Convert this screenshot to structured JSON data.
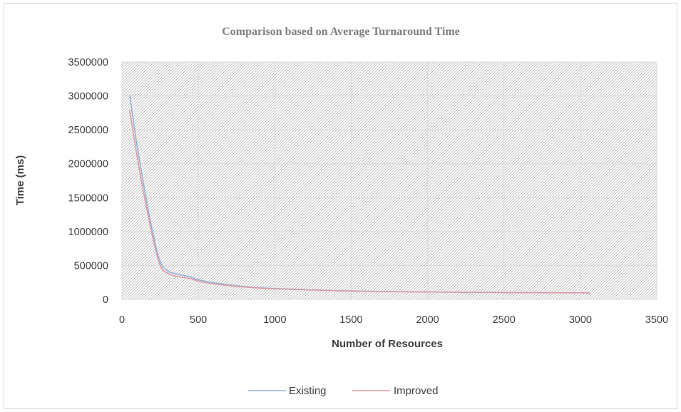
{
  "chart_data": {
    "type": "line",
    "title": "Comparison based on Average Turnaround Time",
    "xlabel": "Number of Resources",
    "ylabel": "Time (ms)",
    "xlim": [
      0,
      3500
    ],
    "ylim": [
      0,
      3500000
    ],
    "x_ticks": [
      "0",
      "500",
      "1000",
      "1500",
      "2000",
      "2500",
      "3000",
      "3500"
    ],
    "y_ticks": [
      "0",
      "500000",
      "1000000",
      "1500000",
      "2000000",
      "2500000",
      "3000000",
      "3500000"
    ],
    "grid": true,
    "legend_position": "bottom",
    "series": [
      {
        "name": "Existing",
        "color": "#8fb4da",
        "x": [
          50,
          100,
          150,
          200,
          250,
          300,
          350,
          400,
          450,
          500,
          600,
          700,
          800,
          1000,
          1500,
          2000,
          2500,
          3000,
          3050
        ],
        "y": [
          3020000,
          2250000,
          1600000,
          1000000,
          560000,
          420000,
          380000,
          355000,
          330000,
          290000,
          245000,
          215000,
          190000,
          160000,
          125000,
          110000,
          103000,
          97000,
          95000
        ]
      },
      {
        "name": "Improved",
        "color": "#e39aa2",
        "x": [
          50,
          100,
          150,
          200,
          250,
          300,
          350,
          400,
          450,
          500,
          600,
          700,
          800,
          1000,
          1500,
          2000,
          2500,
          3000,
          3050
        ],
        "y": [
          2790000,
          2100000,
          1480000,
          930000,
          500000,
          385000,
          345000,
          325000,
          305000,
          270000,
          230000,
          205000,
          182000,
          155000,
          122000,
          108000,
          101000,
          96000,
          94000
        ]
      }
    ]
  }
}
